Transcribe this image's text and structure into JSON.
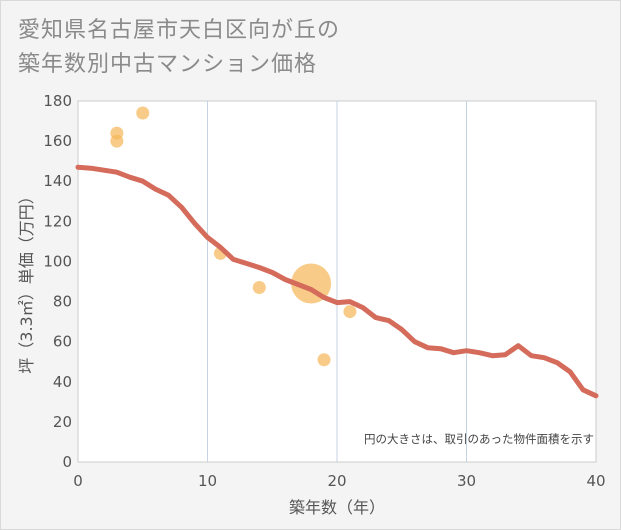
{
  "title_lines": [
    "愛知県名古屋市天白区向が丘の",
    "築年数別中古マンション価格"
  ],
  "chart_data": {
    "type": "scatter+line",
    "xlabel": "築年数（年）",
    "ylabel": "坪（3.3㎡）単価（万円）",
    "xlim": [
      0,
      40
    ],
    "ylim": [
      0,
      180
    ],
    "x_ticks": [
      0,
      10,
      20,
      30,
      40
    ],
    "y_ticks": [
      0,
      20,
      40,
      60,
      80,
      100,
      120,
      140,
      160,
      180
    ],
    "note": "円の大きさは、取引のあった物件面積を示す",
    "line_color": "#d46b5b",
    "bubble_color": "#f5b95a",
    "trend": {
      "x": [
        0,
        1,
        2,
        3,
        4,
        5,
        6,
        7,
        8,
        9,
        10,
        11,
        12,
        13,
        14,
        15,
        16,
        17,
        18,
        19,
        20,
        21,
        22,
        23,
        24,
        25,
        26,
        27,
        28,
        29,
        30,
        31,
        32,
        33,
        34,
        35,
        36,
        37,
        38,
        39,
        40
      ],
      "y": [
        147,
        146.5,
        145.5,
        144.5,
        142,
        140,
        136,
        133,
        127,
        119,
        112,
        107,
        101,
        99,
        97,
        94.5,
        91,
        88.5,
        86,
        82,
        79.5,
        80,
        77,
        72,
        70.5,
        66,
        60,
        57,
        56.5,
        54.5,
        55.5,
        54.5,
        53,
        53.5,
        58,
        53,
        52,
        49.5,
        45,
        36,
        33
      ]
    },
    "bubbles": [
      {
        "x": 3,
        "y": 164,
        "size": "small"
      },
      {
        "x": 3,
        "y": 160,
        "size": "small"
      },
      {
        "x": 5,
        "y": 174,
        "size": "small"
      },
      {
        "x": 11,
        "y": 104,
        "size": "small"
      },
      {
        "x": 14,
        "y": 87,
        "size": "small"
      },
      {
        "x": 18,
        "y": 89,
        "size": "large"
      },
      {
        "x": 21,
        "y": 75,
        "size": "small"
      },
      {
        "x": 19,
        "y": 51,
        "size": "small"
      }
    ]
  }
}
